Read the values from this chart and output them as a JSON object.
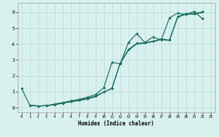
{
  "title": "",
  "xlabel": "Humidex (Indice chaleur)",
  "background_color": "#d8f0ee",
  "grid_color": "#b8dbd8",
  "line_color": "#1a6e5e",
  "xlim": [
    -0.5,
    23.5
  ],
  "ylim": [
    -0.3,
    6.6
  ],
  "x_ticks": [
    0,
    1,
    2,
    3,
    4,
    5,
    6,
    7,
    8,
    9,
    10,
    11,
    12,
    13,
    14,
    15,
    16,
    17,
    18,
    19,
    20,
    21,
    22,
    23
  ],
  "y_ticks": [
    0,
    1,
    2,
    3,
    4,
    5,
    6
  ],
  "line1_x": [
    0,
    1,
    2,
    3,
    4,
    5,
    6,
    7,
    8,
    9,
    10,
    11,
    12,
    13,
    14,
    15,
    16,
    17,
    18,
    19,
    20,
    21,
    22
  ],
  "line1_y": [
    1.2,
    0.15,
    0.1,
    0.12,
    0.22,
    0.32,
    0.42,
    0.52,
    0.65,
    0.82,
    1.25,
    2.85,
    2.75,
    4.1,
    4.65,
    4.1,
    4.45,
    4.25,
    5.65,
    5.95,
    5.85,
    6.05,
    5.6
  ],
  "line2_x": [
    1,
    2,
    3,
    4,
    5,
    6,
    7,
    8,
    9,
    10,
    11,
    12,
    13,
    14,
    15,
    16,
    17,
    18,
    19,
    20,
    21,
    22
  ],
  "line2_y": [
    0.15,
    0.1,
    0.12,
    0.18,
    0.28,
    0.38,
    0.48,
    0.58,
    0.72,
    0.98,
    1.22,
    2.82,
    3.65,
    4.05,
    4.08,
    4.18,
    4.32,
    4.25,
    5.72,
    5.92,
    5.92,
    6.02
  ],
  "line3_x": [
    1,
    2,
    3,
    4,
    5,
    6,
    7,
    8,
    9,
    10,
    11,
    12,
    13,
    14,
    15,
    16,
    17,
    18,
    19,
    20,
    21,
    22
  ],
  "line3_y": [
    0.15,
    0.1,
    0.12,
    0.18,
    0.28,
    0.36,
    0.44,
    0.54,
    0.68,
    0.98,
    1.2,
    2.78,
    3.6,
    4.0,
    4.05,
    4.15,
    4.28,
    4.22,
    5.68,
    5.88,
    5.88,
    5.98
  ]
}
